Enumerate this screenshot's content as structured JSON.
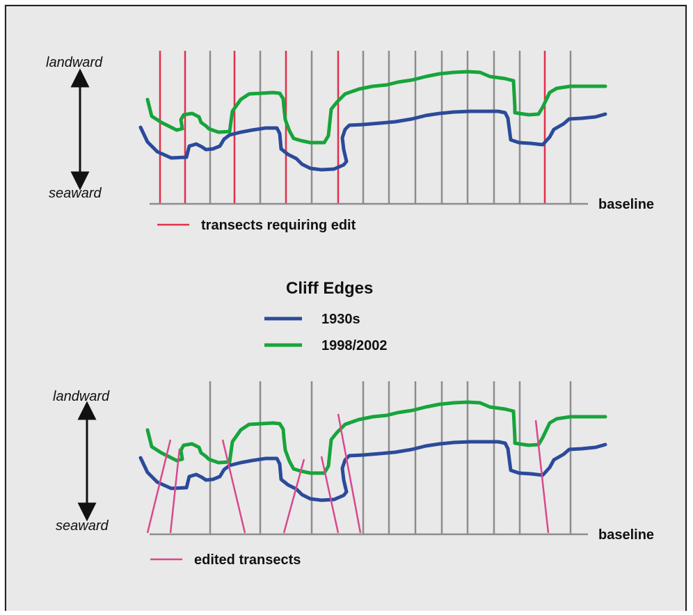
{
  "top_panel": {
    "landward_label": "landward",
    "seaward_label": "seaward",
    "baseline_label": "baseline",
    "legend_label": "transects requiring edit"
  },
  "legend": {
    "title": "Cliff Edges",
    "series": [
      {
        "name": "1930s",
        "color": "#2b4a9a"
      },
      {
        "name": "1998/2002",
        "color": "#17a43b"
      }
    ]
  },
  "bottom_panel": {
    "landward_label": "landward",
    "seaward_label": "seaward",
    "baseline_label": "baseline",
    "legend_label": "edited transects"
  },
  "colors": {
    "background": "#e9e9e9",
    "border": "#222222",
    "transect": "#8c8c8c",
    "transect_requiring_edit": "#e0304a",
    "edited_transect": "#d9488e",
    "cliff_1930s": "#2b4a9a",
    "cliff_1998_2002": "#17a43b",
    "arrow": "#111111"
  },
  "icons": [
    "double-headed-arrow",
    "legend-line-swatch"
  ]
}
